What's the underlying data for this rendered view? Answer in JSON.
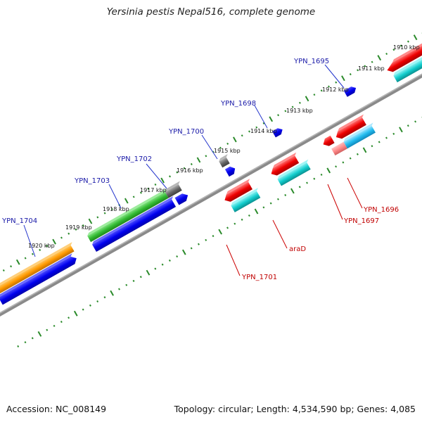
{
  "title": "Yersinia pestis Nepal516, complete genome",
  "footer": {
    "accession": "Accession: NC_008149",
    "summary": "Topology: circular; Length: 4,534,590 bp; Genes: 4,085"
  },
  "scale_labels": [
    "1910 kbp",
    "1911 kbp",
    "1912 kbp",
    "1913 kbp",
    "1914 kbp",
    "1915 kbp",
    "1916 kbp",
    "1917 kbp",
    "1918 kbp",
    "1919 kbp",
    "1920 kbp"
  ],
  "gene_labels": {
    "YPN_1695": "YPN_1695",
    "YPN_1698": "YPN_1698",
    "YPN_1700": "YPN_1700",
    "YPN_1702": "YPN_1702",
    "YPN_1703": "YPN_1703",
    "YPN_1704": "YPN_1704",
    "YPN_1696": "YPN_1696",
    "YPN_1697": "YPN_1697",
    "araD": "araD",
    "YPN_1701": "YPN_1701"
  },
  "colors": {
    "forward_cds": "#0000dd",
    "reverse_cds": "#ee0000",
    "cyan": "#11bbbb",
    "green": "#33bb33",
    "orange": "#ff9900",
    "gray": "#666666",
    "backbone": "#7a7a7a",
    "tick_dots": "#2a8a2a",
    "label_blue": "#1a1aa8",
    "label_red": "#c00000"
  }
}
